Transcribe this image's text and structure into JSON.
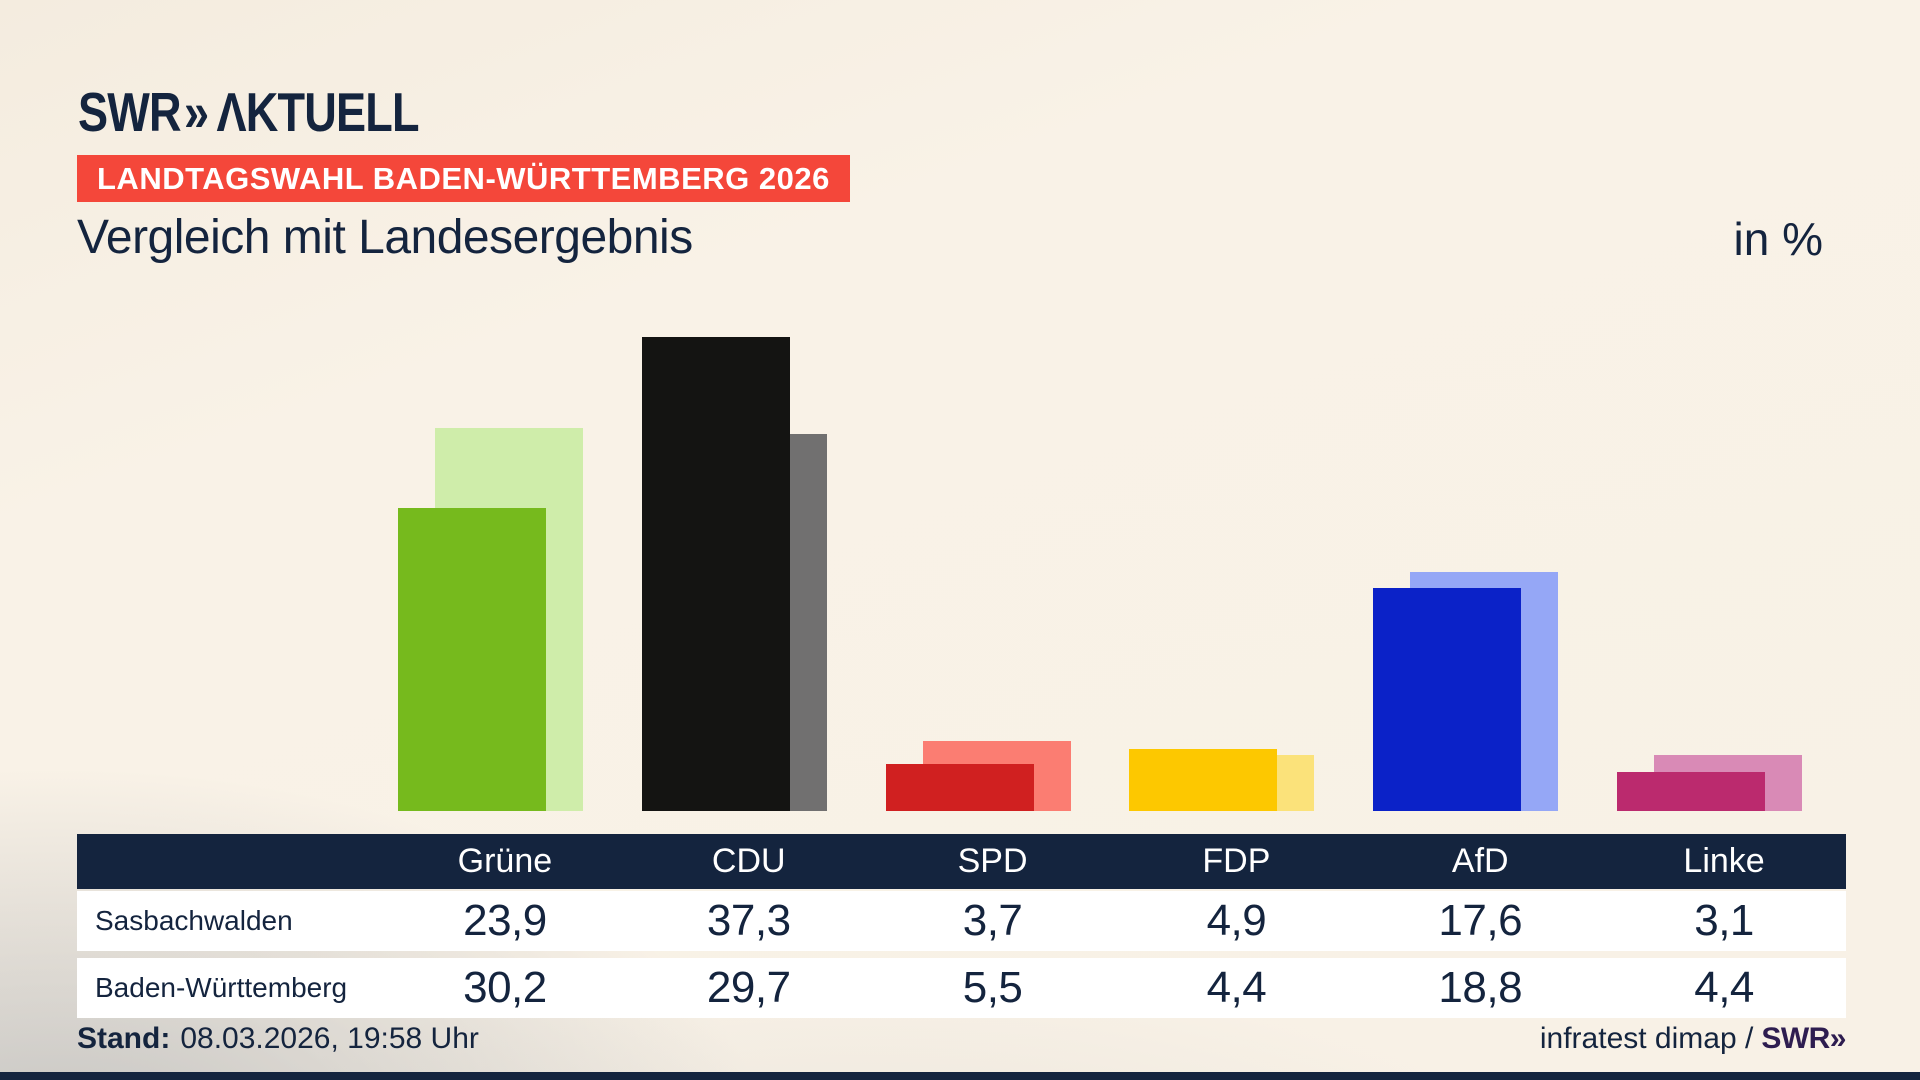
{
  "header": {
    "logo": {
      "brand": "SWR",
      "chevrons": "»",
      "suffix": "ΛKTUELL"
    },
    "badge": "LANDTAGSWAHL BADEN-WÜRTTEMBERG 2026",
    "title": "Vergleich mit Landesergebnis",
    "unit_label": "in %"
  },
  "chart_data": {
    "type": "bar",
    "title": "Vergleich mit Landesergebnis",
    "unit": "in %",
    "categories": [
      "Grüne",
      "CDU",
      "SPD",
      "FDP",
      "AfD",
      "Linke"
    ],
    "series": [
      {
        "name": "Sasbachwalden",
        "role": "foreground",
        "values": [
          23.9,
          37.3,
          3.7,
          4.9,
          17.6,
          3.1
        ],
        "labels": [
          "23,9",
          "37,3",
          "3,7",
          "4,9",
          "17,6",
          "3,1"
        ]
      },
      {
        "name": "Baden-Württemberg",
        "role": "background",
        "values": [
          30.2,
          29.7,
          5.5,
          4.4,
          18.8,
          4.4
        ],
        "labels": [
          "30,2",
          "29,7",
          "5,5",
          "4,4",
          "18,8",
          "4,4"
        ]
      }
    ],
    "bar_colors": {
      "foreground": [
        "#76ba1d",
        "#141412",
        "#d02020",
        "#fdc800",
        "#0b22c8",
        "#bb2a6e"
      ],
      "background": [
        "#cfedaa",
        "#717070",
        "#fb7d72",
        "#fbe27a",
        "#95a7f6",
        "#d98ab6"
      ]
    },
    "ylim": [
      0,
      40
    ],
    "grid": false,
    "legend_position": "table-below"
  },
  "footer": {
    "stand_label": "Stand:",
    "stand_value": "08.03.2026, 19:58 Uhr",
    "source": "infratest dimap /",
    "source_brand": "SWR»"
  },
  "colors": {
    "navy": "#14243e",
    "badge_red": "#f4473a",
    "background_cream": "#f8f1e6",
    "background_grey": "#c2c1bf",
    "table_row_white": "#ffffff",
    "brand_purple": "#2e1d50"
  }
}
